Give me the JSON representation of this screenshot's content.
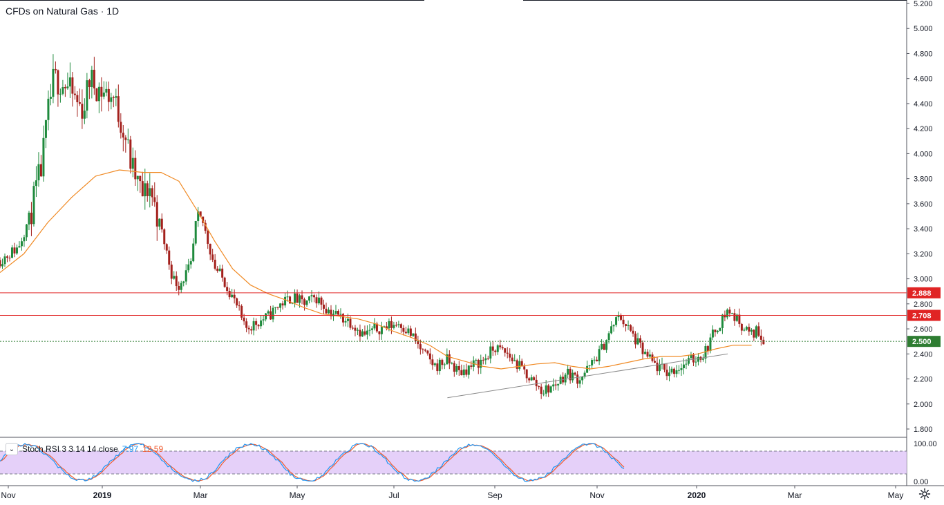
{
  "header": {
    "title": "CFDs on Natural Gas · 1D"
  },
  "oscillator": {
    "label": "Stoch RSI 3 3 14 14 close",
    "k_value": "7.97",
    "d_value": "12.59",
    "collapse_icon": "chevron-down-icon",
    "k_color": "#2196f3",
    "d_color": "#ef5b30",
    "band_color": "#e1c8f8",
    "upper_band": 80,
    "lower_band": 20,
    "axis_labels": [
      "100.00",
      "0.00"
    ]
  },
  "settings_icon": "gear-icon",
  "chart_data": {
    "type": "candlestick",
    "title": "CFDs on Natural Gas · 1D",
    "ylim": [
      1.8,
      5.2
    ],
    "y_ticks": [
      "5.200",
      "5.000",
      "4.800",
      "4.600",
      "4.400",
      "4.200",
      "4.000",
      "3.800",
      "3.600",
      "3.400",
      "3.200",
      "3.000",
      "2.800",
      "2.600",
      "2.400",
      "2.200",
      "2.000",
      "1.800"
    ],
    "x_tick_labels": [
      "Nov",
      "2019",
      "Mar",
      "May",
      "Jul",
      "Sep",
      "Nov",
      "2020",
      "Mar",
      "May"
    ],
    "up_color": "#1e8a3c",
    "down_color": "#a3201c",
    "ma_color": "#f08a24",
    "price_levels": [
      {
        "label": "2.888",
        "value": 2.888,
        "color": "#e02424"
      },
      {
        "label": "2.708",
        "value": 2.708,
        "color": "#e02424"
      },
      {
        "label": "2.500",
        "value": 2.5,
        "color": "#2e7d32",
        "dotted": true
      }
    ],
    "trendline": {
      "from": [
        2019.58,
        2.05
      ],
      "to": [
        2020.05,
        2.4
      ]
    },
    "close_path": [
      [
        2018.83,
        3.15
      ],
      [
        2018.86,
        3.25
      ],
      [
        2018.88,
        3.5
      ],
      [
        2018.9,
        3.9
      ],
      [
        2018.91,
        4.3
      ],
      [
        2018.92,
        4.6
      ],
      [
        2018.94,
        4.55
      ],
      [
        2018.96,
        4.4
      ],
      [
        2018.97,
        4.35
      ],
      [
        2018.98,
        4.6
      ],
      [
        2019.0,
        4.5
      ],
      [
        2019.02,
        4.45
      ],
      [
        2019.04,
        4.15
      ],
      [
        2019.05,
        3.9
      ],
      [
        2019.07,
        3.65
      ],
      [
        2019.08,
        3.75
      ],
      [
        2019.1,
        3.4
      ],
      [
        2019.11,
        3.2
      ],
      [
        2019.12,
        3.0
      ],
      [
        2019.13,
        2.95
      ],
      [
        2019.15,
        3.1
      ],
      [
        2019.16,
        3.5
      ],
      [
        2019.17,
        3.45
      ],
      [
        2019.19,
        3.1
      ],
      [
        2019.21,
        2.95
      ],
      [
        2019.23,
        2.75
      ],
      [
        2019.24,
        2.6
      ],
      [
        2019.26,
        2.65
      ],
      [
        2019.28,
        2.7
      ],
      [
        2019.3,
        2.8
      ],
      [
        2019.32,
        2.85
      ],
      [
        2019.34,
        2.8
      ],
      [
        2019.36,
        2.85
      ],
      [
        2019.38,
        2.75
      ],
      [
        2019.4,
        2.7
      ],
      [
        2019.42,
        2.65
      ],
      [
        2019.44,
        2.55
      ],
      [
        2019.46,
        2.6
      ],
      [
        2019.48,
        2.62
      ],
      [
        2019.5,
        2.65
      ],
      [
        2019.52,
        2.55
      ],
      [
        2019.54,
        2.4
      ],
      [
        2019.56,
        2.3
      ],
      [
        2019.58,
        2.35
      ],
      [
        2019.6,
        2.25
      ],
      [
        2019.62,
        2.3
      ],
      [
        2019.64,
        2.35
      ],
      [
        2019.66,
        2.45
      ],
      [
        2019.68,
        2.4
      ],
      [
        2019.7,
        2.3
      ],
      [
        2019.72,
        2.2
      ],
      [
        2019.74,
        2.1
      ],
      [
        2019.76,
        2.15
      ],
      [
        2019.78,
        2.25
      ],
      [
        2019.8,
        2.2
      ],
      [
        2019.82,
        2.3
      ],
      [
        2019.84,
        2.45
      ],
      [
        2019.86,
        2.65
      ],
      [
        2019.87,
        2.7
      ],
      [
        2019.89,
        2.55
      ],
      [
        2019.91,
        2.4
      ],
      [
        2019.93,
        2.3
      ],
      [
        2019.95,
        2.25
      ],
      [
        2019.97,
        2.3
      ],
      [
        2019.99,
        2.35
      ],
      [
        2020.01,
        2.4
      ],
      [
        2020.03,
        2.6
      ],
      [
        2020.05,
        2.75
      ],
      [
        2020.07,
        2.65
      ],
      [
        2020.09,
        2.55
      ],
      [
        2020.1,
        2.6
      ],
      [
        2020.11,
        2.5
      ]
    ],
    "ma_path": [
      [
        2018.83,
        3.05
      ],
      [
        2018.87,
        3.2
      ],
      [
        2018.91,
        3.45
      ],
      [
        2018.95,
        3.65
      ],
      [
        2018.99,
        3.82
      ],
      [
        2019.03,
        3.87
      ],
      [
        2019.07,
        3.85
      ],
      [
        2019.1,
        3.85
      ],
      [
        2019.13,
        3.78
      ],
      [
        2019.16,
        3.55
      ],
      [
        2019.19,
        3.3
      ],
      [
        2019.22,
        3.08
      ],
      [
        2019.25,
        2.95
      ],
      [
        2019.28,
        2.88
      ],
      [
        2019.31,
        2.83
      ],
      [
        2019.34,
        2.77
      ],
      [
        2019.37,
        2.72
      ],
      [
        2019.4,
        2.7
      ],
      [
        2019.43,
        2.68
      ],
      [
        2019.46,
        2.64
      ],
      [
        2019.49,
        2.58
      ],
      [
        2019.52,
        2.53
      ],
      [
        2019.55,
        2.47
      ],
      [
        2019.58,
        2.38
      ],
      [
        2019.61,
        2.34
      ],
      [
        2019.64,
        2.3
      ],
      [
        2019.67,
        2.28
      ],
      [
        2019.7,
        2.3
      ],
      [
        2019.73,
        2.32
      ],
      [
        2019.76,
        2.33
      ],
      [
        2019.79,
        2.3
      ],
      [
        2019.82,
        2.28
      ],
      [
        2019.85,
        2.3
      ],
      [
        2019.88,
        2.33
      ],
      [
        2019.91,
        2.36
      ],
      [
        2019.94,
        2.38
      ],
      [
        2019.97,
        2.38
      ],
      [
        2020.0,
        2.4
      ],
      [
        2020.03,
        2.44
      ],
      [
        2020.06,
        2.47
      ],
      [
        2020.09,
        2.47
      ]
    ]
  }
}
